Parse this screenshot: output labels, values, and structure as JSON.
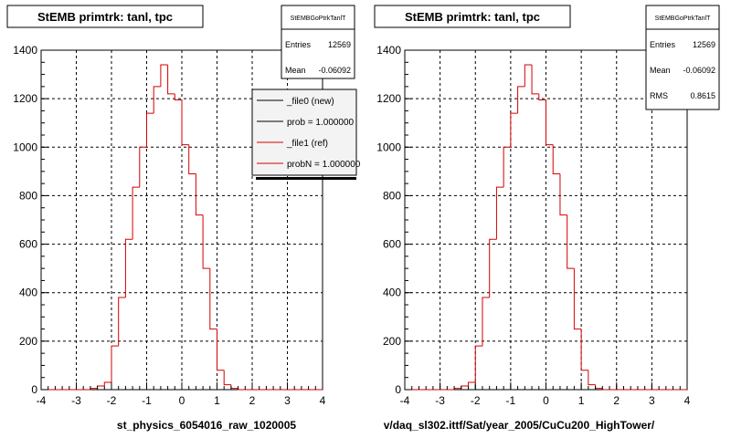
{
  "colors": {
    "ref": "#d40000",
    "new": "#000000",
    "grid": "#000000",
    "frame": "#000000",
    "legend_bg": "#ffffff"
  },
  "chart_data": [
    {
      "type": "bar",
      "title": "StEMB primtrk: tanl, tpc",
      "xlabel": "st_physics_6054016_raw_1020005",
      "ylabel": "",
      "xlim": [
        -4,
        4
      ],
      "ylim": [
        0,
        1400
      ],
      "grid": true,
      "bin_edges": [
        -4.0,
        -3.8,
        -3.6,
        -3.4,
        -3.2,
        -3.0,
        -2.8,
        -2.6,
        -2.4,
        -2.2,
        -2.0,
        -1.8,
        -1.6,
        -1.4,
        -1.2,
        -1.0,
        -0.8,
        -0.6,
        -0.4,
        -0.2,
        0.0,
        0.2,
        0.4,
        0.6,
        0.8,
        1.0,
        1.2,
        1.4,
        1.6,
        1.8,
        2.0,
        2.2,
        2.4,
        2.6,
        2.8,
        3.0,
        3.2,
        3.4,
        3.6,
        3.8,
        4.0
      ],
      "values": [
        0,
        0,
        0,
        0,
        0,
        0,
        0,
        5,
        15,
        30,
        180,
        380,
        620,
        835,
        1000,
        1140,
        1250,
        1340,
        1220,
        1195,
        1010,
        890,
        720,
        500,
        250,
        80,
        20,
        5,
        0,
        0,
        0,
        0,
        0,
        0,
        0,
        0,
        0,
        0,
        0,
        0
      ],
      "stats_box": {
        "name": "StEMBGoPtrkTanlT",
        "entries_label": "Entries",
        "entries": "12569",
        "mean_label": "Mean",
        "mean": "-0.06092"
      },
      "legend": {
        "position": "top-right",
        "entries": [
          {
            "label": "_file0 (new)",
            "color": "#000000"
          },
          {
            "label": "prob = 1.000000",
            "color": "#000000"
          },
          {
            "label": "_file1 (ref)",
            "color": "#d40000"
          },
          {
            "label": "probN = 1.000000",
            "color": "#d40000"
          }
        ]
      }
    },
    {
      "type": "bar",
      "title": "StEMB primtrk: tanl, tpc",
      "xlabel": "v/daq_sl302.ittf/Sat/year_2005/CuCu200_HighTower/",
      "ylabel": "",
      "xlim": [
        -4,
        4
      ],
      "ylim": [
        0,
        1400
      ],
      "grid": true,
      "bin_edges": [
        -4.0,
        -3.8,
        -3.6,
        -3.4,
        -3.2,
        -3.0,
        -2.8,
        -2.6,
        -2.4,
        -2.2,
        -2.0,
        -1.8,
        -1.6,
        -1.4,
        -1.2,
        -1.0,
        -0.8,
        -0.6,
        -0.4,
        -0.2,
        0.0,
        0.2,
        0.4,
        0.6,
        0.8,
        1.0,
        1.2,
        1.4,
        1.6,
        1.8,
        2.0,
        2.2,
        2.4,
        2.6,
        2.8,
        3.0,
        3.2,
        3.4,
        3.6,
        3.8,
        4.0
      ],
      "values": [
        0,
        0,
        0,
        0,
        0,
        0,
        0,
        5,
        15,
        30,
        180,
        380,
        620,
        835,
        1000,
        1140,
        1250,
        1340,
        1220,
        1195,
        1010,
        890,
        720,
        500,
        250,
        80,
        20,
        5,
        0,
        0,
        0,
        0,
        0,
        0,
        0,
        0,
        0,
        0,
        0,
        0
      ],
      "stats_box": {
        "name": "StEMBGoPtrkTanlT",
        "entries_label": "Entries",
        "entries": "12569",
        "mean_label": "Mean",
        "mean": "-0.06092",
        "rms_label": "RMS",
        "rms": "0.8615"
      }
    }
  ],
  "tick_labels_x": [
    "-4",
    "-3",
    "-2",
    "-1",
    "0",
    "1",
    "2",
    "3",
    "4"
  ],
  "tick_labels_y": [
    "0",
    "200",
    "400",
    "600",
    "800",
    "1000",
    "1200",
    "1400"
  ]
}
